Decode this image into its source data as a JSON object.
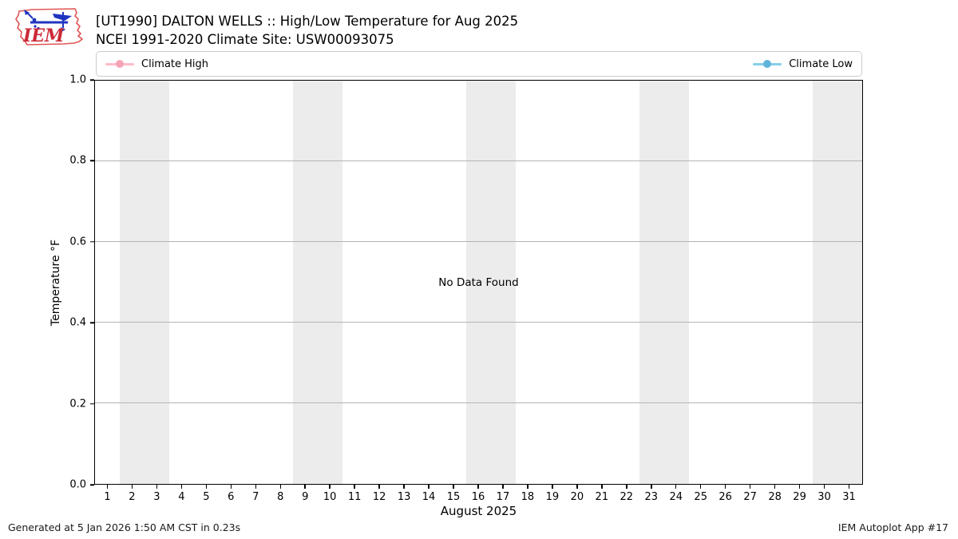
{
  "header": {
    "title": "[UT1990] DALTON WELLS :: High/Low Temperature for Aug 2025",
    "subtitle": "NCEI 1991-2020 Climate Site: USW00093075",
    "logo_text": "IEM"
  },
  "legend": {
    "items": [
      {
        "label": "Climate High",
        "line_color": "#ffbcc9",
        "marker_color": "#f7a3b6"
      },
      {
        "label": "Climate Low",
        "line_color": "#87ceeb",
        "marker_color": "#5fb4d9"
      }
    ]
  },
  "chart_data": {
    "type": "line",
    "title": "[UT1990] DALTON WELLS :: High/Low Temperature for Aug 2025",
    "subtitle": "NCEI 1991-2020 Climate Site: USW00093075",
    "xlabel": "August 2025",
    "ylabel": "Temperature °F",
    "xlim": [
      0.5,
      31.5
    ],
    "ylim": [
      0.0,
      1.0
    ],
    "xticks": [
      1,
      2,
      3,
      4,
      5,
      6,
      7,
      8,
      9,
      10,
      11,
      12,
      13,
      14,
      15,
      16,
      17,
      18,
      19,
      20,
      21,
      22,
      23,
      24,
      25,
      26,
      27,
      28,
      29,
      30,
      31
    ],
    "yticks": [
      {
        "v": 0.0,
        "l": "0.0"
      },
      {
        "v": 0.2,
        "l": "0.2"
      },
      {
        "v": 0.4,
        "l": "0.4"
      },
      {
        "v": 0.6,
        "l": "0.6"
      },
      {
        "v": 0.8,
        "l": "0.8"
      },
      {
        "v": 1.0,
        "l": "1.0"
      }
    ],
    "grid": "horizontal-only",
    "grid_color": "#b4b4b4",
    "weekend_band_color": "#ececec",
    "weekend_bands_x": [
      [
        1.5,
        3.5
      ],
      [
        8.5,
        10.5
      ],
      [
        15.5,
        17.5
      ],
      [
        22.5,
        24.5
      ],
      [
        29.5,
        31.5
      ]
    ],
    "series": [
      {
        "name": "Climate High",
        "color": "#ffbcc9",
        "values": []
      },
      {
        "name": "Climate Low",
        "color": "#87ceeb",
        "values": []
      }
    ],
    "annotation": "No Data Found",
    "legend_position": "expanded top row"
  },
  "footer": {
    "left": "Generated at 5 Jan 2026 1:50 AM CST in 0.23s",
    "right": "IEM Autoplot App #17"
  }
}
